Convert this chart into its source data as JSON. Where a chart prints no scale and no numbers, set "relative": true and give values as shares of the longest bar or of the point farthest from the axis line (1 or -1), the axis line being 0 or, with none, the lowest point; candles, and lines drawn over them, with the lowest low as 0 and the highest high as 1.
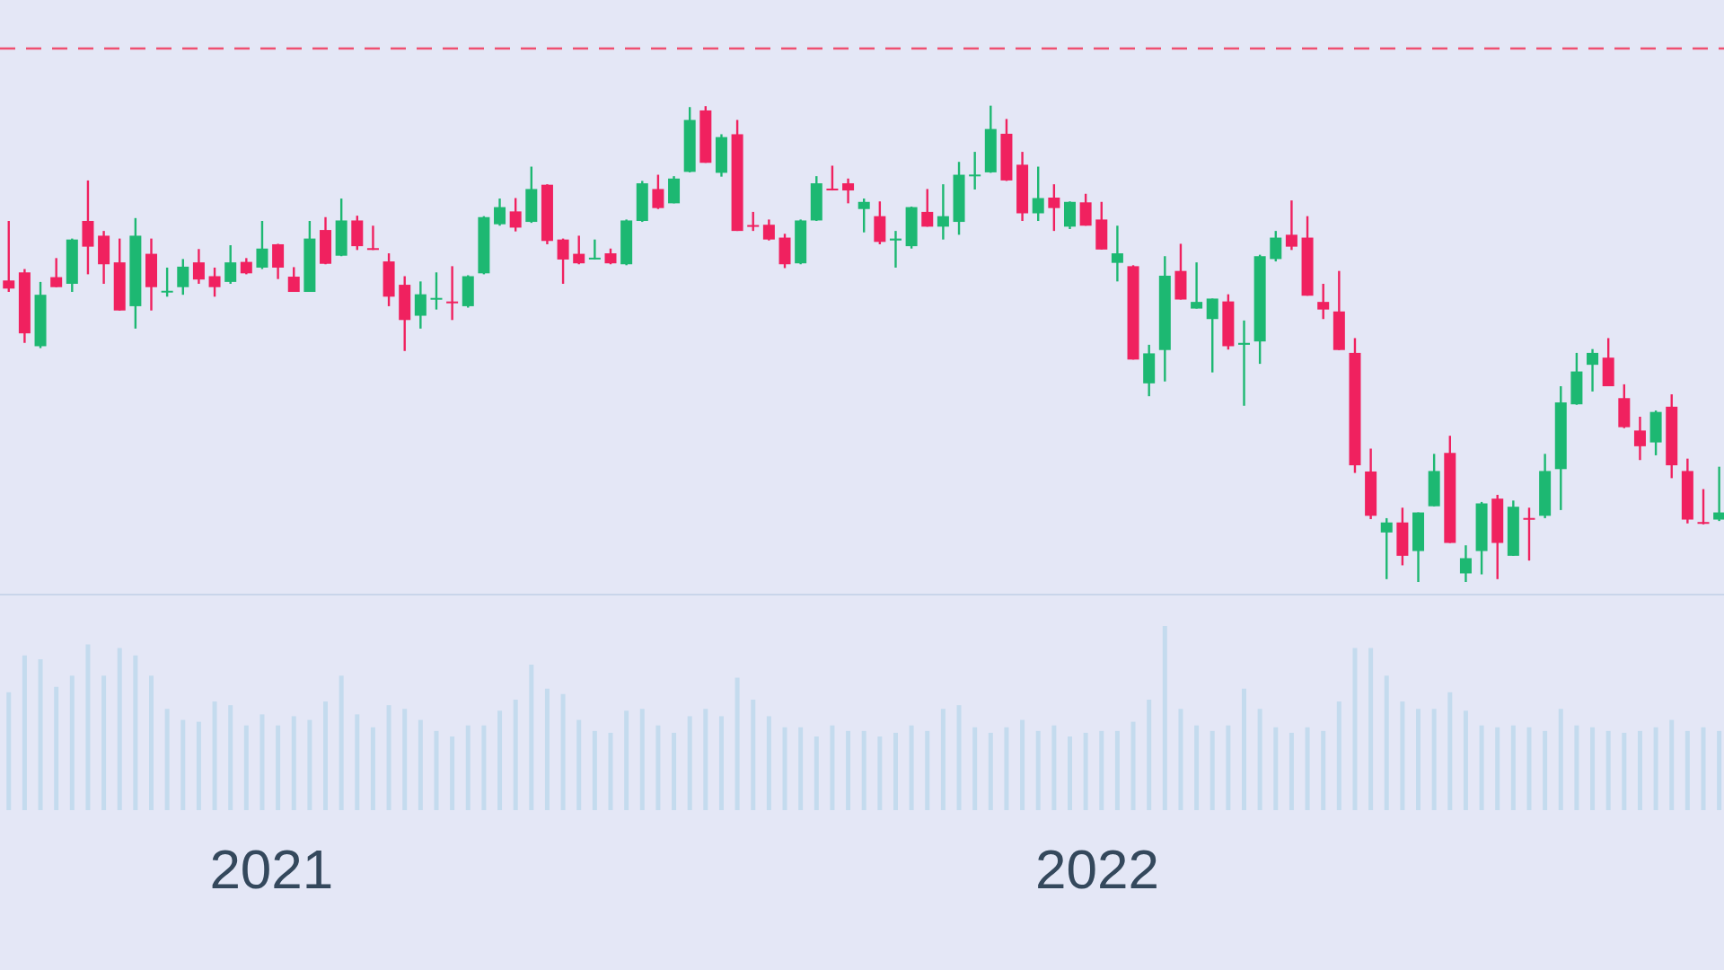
{
  "chart_data": [
    {
      "type": "candlestick",
      "relative": true,
      "x": [
        "2020-09-07",
        "2020-09-14",
        "2020-09-21",
        "2020-09-28",
        "2020-10-05",
        "2020-10-12",
        "2020-10-19",
        "2020-10-26",
        "2020-11-02",
        "2020-11-09",
        "2020-11-16",
        "2020-11-23",
        "2020-11-30",
        "2020-12-07",
        "2020-12-14",
        "2020-12-21",
        "2020-12-28",
        "2021-01-04",
        "2021-01-11",
        "2021-01-18",
        "2021-01-25",
        "2021-02-01",
        "2021-02-08",
        "2021-02-15",
        "2021-02-22",
        "2021-03-01",
        "2021-03-08",
        "2021-03-15",
        "2021-03-22",
        "2021-03-29",
        "2021-04-05",
        "2021-04-12",
        "2021-04-19",
        "2021-04-26",
        "2021-05-03",
        "2021-05-10",
        "2021-05-17",
        "2021-05-24",
        "2021-05-31",
        "2021-06-07",
        "2021-06-14",
        "2021-06-21",
        "2021-06-28",
        "2021-07-05",
        "2021-07-12",
        "2021-07-19",
        "2021-07-26",
        "2021-08-02",
        "2021-08-09",
        "2021-08-16",
        "2021-08-23",
        "2021-08-30",
        "2021-09-06",
        "2021-09-13",
        "2021-09-20",
        "2021-09-27",
        "2021-10-04",
        "2021-10-11",
        "2021-10-18",
        "2021-10-25",
        "2021-11-01",
        "2021-11-08",
        "2021-11-15",
        "2021-11-22",
        "2021-11-29",
        "2021-12-06",
        "2021-12-13",
        "2021-12-20",
        "2021-12-27",
        "2022-01-03",
        "2022-01-10",
        "2022-01-17",
        "2022-01-24",
        "2022-01-31",
        "2022-02-07",
        "2022-02-14",
        "2022-02-21",
        "2022-02-28",
        "2022-03-07",
        "2022-03-14",
        "2022-03-21",
        "2022-03-28",
        "2022-04-04",
        "2022-04-11",
        "2022-04-18",
        "2022-04-25",
        "2022-05-02",
        "2022-05-09",
        "2022-05-16",
        "2022-05-23",
        "2022-05-30",
        "2022-06-06",
        "2022-06-13",
        "2022-06-20",
        "2022-06-27",
        "2022-07-04",
        "2022-07-11",
        "2022-07-18",
        "2022-07-25",
        "2022-08-01",
        "2022-08-08",
        "2022-08-15",
        "2022-08-22",
        "2022-08-29",
        "2022-09-05",
        "2022-09-12",
        "2022-09-19",
        "2022-09-26",
        "2022-10-03"
      ],
      "ohlc": [
        [
          0.633,
          0.758,
          0.609,
          0.616
        ],
        [
          0.65,
          0.657,
          0.502,
          0.522
        ],
        [
          0.495,
          0.63,
          0.491,
          0.603
        ],
        [
          0.64,
          0.68,
          0.619,
          0.619
        ],
        [
          0.626,
          0.721,
          0.609,
          0.719
        ],
        [
          0.758,
          0.843,
          0.646,
          0.704
        ],
        [
          0.727,
          0.737,
          0.626,
          0.667
        ],
        [
          0.671,
          0.721,
          0.57,
          0.57
        ],
        [
          0.579,
          0.764,
          0.532,
          0.727
        ],
        [
          0.689,
          0.721,
          0.57,
          0.619
        ],
        [
          0.608,
          0.66,
          0.599,
          0.611
        ],
        [
          0.619,
          0.678,
          0.603,
          0.662
        ],
        [
          0.671,
          0.699,
          0.626,
          0.635
        ],
        [
          0.642,
          0.66,
          0.599,
          0.619
        ],
        [
          0.63,
          0.707,
          0.626,
          0.671
        ],
        [
          0.672,
          0.68,
          0.646,
          0.648
        ],
        [
          0.66,
          0.758,
          0.657,
          0.7
        ],
        [
          0.709,
          0.71,
          0.636,
          0.66
        ],
        [
          0.641,
          0.661,
          0.609,
          0.609
        ],
        [
          0.609,
          0.758,
          0.609,
          0.721
        ],
        [
          0.739,
          0.766,
          0.667,
          0.668
        ],
        [
          0.685,
          0.805,
          0.684,
          0.759
        ],
        [
          0.759,
          0.769,
          0.697,
          0.705
        ],
        [
          0.7,
          0.748,
          0.697,
          0.698
        ],
        [
          0.673,
          0.69,
          0.579,
          0.599
        ],
        [
          0.624,
          0.642,
          0.485,
          0.55
        ],
        [
          0.559,
          0.631,
          0.532,
          0.604
        ],
        [
          0.593,
          0.65,
          0.572,
          0.596
        ],
        [
          0.588,
          0.663,
          0.55,
          0.586
        ],
        [
          0.579,
          0.644,
          0.576,
          0.642
        ],
        [
          0.648,
          0.768,
          0.646,
          0.766
        ],
        [
          0.751,
          0.805,
          0.748,
          0.787
        ],
        [
          0.778,
          0.806,
          0.736,
          0.744
        ],
        [
          0.756,
          0.872,
          0.754,
          0.825
        ],
        [
          0.834,
          0.835,
          0.709,
          0.716
        ],
        [
          0.719,
          0.721,
          0.626,
          0.677
        ],
        [
          0.689,
          0.727,
          0.667,
          0.669
        ],
        [
          0.678,
          0.719,
          0.677,
          0.68
        ],
        [
          0.69,
          0.7,
          0.667,
          0.669
        ],
        [
          0.667,
          0.761,
          0.665,
          0.759
        ],
        [
          0.758,
          0.842,
          0.756,
          0.837
        ],
        [
          0.825,
          0.855,
          0.783,
          0.785
        ],
        [
          0.795,
          0.852,
          0.795,
          0.847
        ],
        [
          0.861,
          0.997,
          0.86,
          0.97
        ],
        [
          0.99,
          0.999,
          0.88,
          0.88
        ],
        [
          0.859,
          0.94,
          0.851,
          0.934
        ],
        [
          0.94,
          0.97,
          0.737,
          0.737
        ],
        [
          0.749,
          0.777,
          0.737,
          0.746
        ],
        [
          0.75,
          0.761,
          0.717,
          0.719
        ],
        [
          0.723,
          0.731,
          0.659,
          0.667
        ],
        [
          0.669,
          0.761,
          0.667,
          0.759
        ],
        [
          0.759,
          0.852,
          0.758,
          0.837
        ],
        [
          0.825,
          0.874,
          0.822,
          0.823
        ],
        [
          0.837,
          0.847,
          0.795,
          0.822
        ],
        [
          0.783,
          0.805,
          0.734,
          0.798
        ],
        [
          0.768,
          0.799,
          0.709,
          0.714
        ],
        [
          0.717,
          0.737,
          0.66,
          0.721
        ],
        [
          0.705,
          0.788,
          0.7,
          0.787
        ],
        [
          0.777,
          0.825,
          0.746,
          0.746
        ],
        [
          0.746,
          0.835,
          0.719,
          0.768
        ],
        [
          0.756,
          0.882,
          0.729,
          0.855
        ],
        [
          0.852,
          0.903,
          0.824,
          0.855
        ],
        [
          0.86,
          1.0,
          0.859,
          0.951
        ],
        [
          0.941,
          0.972,
          0.842,
          0.843
        ],
        [
          0.876,
          0.903,
          0.758,
          0.774
        ],
        [
          0.774,
          0.872,
          0.758,
          0.806
        ],
        [
          0.807,
          0.835,
          0.737,
          0.785
        ],
        [
          0.746,
          0.799,
          0.741,
          0.798
        ],
        [
          0.797,
          0.815,
          0.748,
          0.748
        ],
        [
          0.761,
          0.798,
          0.698,
          0.698
        ],
        [
          0.67,
          0.748,
          0.631,
          0.69
        ],
        [
          0.663,
          0.665,
          0.467,
          0.467
        ],
        [
          0.417,
          0.498,
          0.39,
          0.48
        ],
        [
          0.487,
          0.684,
          0.421,
          0.643
        ],
        [
          0.653,
          0.71,
          0.593,
          0.593
        ],
        [
          0.574,
          0.671,
          0.574,
          0.588
        ],
        [
          0.552,
          0.595,
          0.44,
          0.595
        ],
        [
          0.589,
          0.604,
          0.488,
          0.495
        ],
        [
          0.498,
          0.549,
          0.37,
          0.502
        ],
        [
          0.505,
          0.687,
          0.458,
          0.684
        ],
        [
          0.678,
          0.737,
          0.673,
          0.723
        ],
        [
          0.729,
          0.801,
          0.697,
          0.704
        ],
        [
          0.723,
          0.768,
          0.601,
          0.601
        ],
        [
          0.588,
          0.626,
          0.552,
          0.572
        ],
        [
          0.568,
          0.653,
          0.487,
          0.487
        ],
        [
          0.481,
          0.512,
          0.229,
          0.245
        ],
        [
          0.232,
          0.28,
          0.132,
          0.139
        ],
        [
          0.104,
          0.134,
          0.006,
          0.125
        ],
        [
          0.125,
          0.156,
          0.035,
          0.055
        ],
        [
          0.065,
          0.146,
          0.0,
          0.146
        ],
        [
          0.159,
          0.269,
          0.159,
          0.233
        ],
        [
          0.271,
          0.307,
          0.082,
          0.082
        ],
        [
          0.018,
          0.077,
          0.0,
          0.05
        ],
        [
          0.065,
          0.168,
          0.016,
          0.165
        ],
        [
          0.175,
          0.183,
          0.006,
          0.082
        ],
        [
          0.055,
          0.171,
          0.055,
          0.158
        ],
        [
          0.134,
          0.156,
          0.045,
          0.131
        ],
        [
          0.139,
          0.269,
          0.134,
          0.233
        ],
        [
          0.237,
          0.411,
          0.151,
          0.377
        ],
        [
          0.373,
          0.481,
          0.372,
          0.442
        ],
        [
          0.456,
          0.489,
          0.4,
          0.481
        ],
        [
          0.471,
          0.512,
          0.411,
          0.411
        ],
        [
          0.386,
          0.415,
          0.323,
          0.325
        ],
        [
          0.318,
          0.347,
          0.256,
          0.285
        ],
        [
          0.293,
          0.36,
          0.266,
          0.357
        ],
        [
          0.368,
          0.394,
          0.218,
          0.245
        ],
        [
          0.233,
          0.259,
          0.123,
          0.131
        ],
        [
          0.125,
          0.195,
          0.121,
          0.123
        ],
        [
          0.131,
          0.242,
          0.128,
          0.146
        ]
      ],
      "colors": [
        "#f0215f",
        "#f0215f",
        "#1db872",
        "#f0215f",
        "#1db872",
        "#f0215f",
        "#f0215f",
        "#f0215f",
        "#1db872",
        "#f0215f",
        "#1db872",
        "#1db872",
        "#f0215f",
        "#f0215f",
        "#1db872",
        "#f0215f",
        "#1db872",
        "#f0215f",
        "#f0215f",
        "#1db872",
        "#f0215f",
        "#1db872",
        "#f0215f",
        "#f0215f",
        "#f0215f",
        "#f0215f",
        "#1db872",
        "#1db872",
        "#f0215f",
        "#1db872",
        "#1db872",
        "#1db872",
        "#f0215f",
        "#1db872",
        "#f0215f",
        "#f0215f",
        "#f0215f",
        "#1db872",
        "#f0215f",
        "#1db872",
        "#1db872",
        "#f0215f",
        "#1db872",
        "#1db872",
        "#f0215f",
        "#1db872",
        "#f0215f",
        "#f0215f",
        "#f0215f",
        "#f0215f",
        "#1db872",
        "#1db872",
        "#f0215f",
        "#f0215f",
        "#1db872",
        "#f0215f",
        "#1db872",
        "#1db872",
        "#f0215f",
        "#1db872",
        "#1db872",
        "#1db872",
        "#1db872",
        "#f0215f",
        "#f0215f",
        "#1db872",
        "#f0215f",
        "#1db872",
        "#f0215f",
        "#f0215f",
        "#1db872",
        "#f0215f",
        "#1db872",
        "#1db872",
        "#f0215f",
        "#1db872",
        "#1db872",
        "#f0215f",
        "#1db872",
        "#1db872",
        "#1db872",
        "#f0215f",
        "#f0215f",
        "#f0215f",
        "#f0215f",
        "#f0215f",
        "#f0215f",
        "#1db872",
        "#f0215f",
        "#1db872",
        "#1db872",
        "#f0215f",
        "#1db872",
        "#1db872",
        "#f0215f",
        "#1db872",
        "#f0215f",
        "#1db872",
        "#1db872",
        "#1db872",
        "#1db872",
        "#f0215f",
        "#f0215f",
        "#f0215f",
        "#1db872",
        "#f0215f",
        "#f0215f",
        "#f0215f",
        "#1db872"
      ],
      "xlim": [
        "2020-09-03",
        "2022-10-05"
      ],
      "tick_labels": false,
      "ref_lines": [
        {
          "axis": "y",
          "value": 1.12,
          "color": "#ef4f70",
          "line_style": "dashed"
        }
      ]
    },
    {
      "type": "bar",
      "relative": true,
      "x": [
        "2020-09-07",
        "2020-09-14",
        "2020-09-21",
        "2020-09-28",
        "2020-10-05",
        "2020-10-12",
        "2020-10-19",
        "2020-10-26",
        "2020-11-02",
        "2020-11-09",
        "2020-11-16",
        "2020-11-23",
        "2020-11-30",
        "2020-12-07",
        "2020-12-14",
        "2020-12-21",
        "2020-12-28",
        "2021-01-04",
        "2021-01-11",
        "2021-01-18",
        "2021-01-25",
        "2021-02-01",
        "2021-02-08",
        "2021-02-15",
        "2021-02-22",
        "2021-03-01",
        "2021-03-08",
        "2021-03-15",
        "2021-03-22",
        "2021-03-29",
        "2021-04-05",
        "2021-04-12",
        "2021-04-19",
        "2021-04-26",
        "2021-05-03",
        "2021-05-10",
        "2021-05-17",
        "2021-05-24",
        "2021-05-31",
        "2021-06-07",
        "2021-06-14",
        "2021-06-21",
        "2021-06-28",
        "2021-07-05",
        "2021-07-12",
        "2021-07-19",
        "2021-07-26",
        "2021-08-02",
        "2021-08-09",
        "2021-08-16",
        "2021-08-23",
        "2021-08-30",
        "2021-09-06",
        "2021-09-13",
        "2021-09-20",
        "2021-09-27",
        "2021-10-04",
        "2021-10-11",
        "2021-10-18",
        "2021-10-25",
        "2021-11-01",
        "2021-11-08",
        "2021-11-15",
        "2021-11-22",
        "2021-11-29",
        "2021-12-06",
        "2021-12-13",
        "2021-12-20",
        "2021-12-27",
        "2022-01-03",
        "2022-01-10",
        "2022-01-17",
        "2022-01-24",
        "2022-01-31",
        "2022-02-07",
        "2022-02-14",
        "2022-02-21",
        "2022-02-28",
        "2022-03-07",
        "2022-03-14",
        "2022-03-21",
        "2022-03-28",
        "2022-04-04",
        "2022-04-11",
        "2022-04-18",
        "2022-04-25",
        "2022-05-02",
        "2022-05-09",
        "2022-05-16",
        "2022-05-23",
        "2022-05-30",
        "2022-06-06",
        "2022-06-13",
        "2022-06-20",
        "2022-06-27",
        "2022-07-04",
        "2022-07-11",
        "2022-07-18",
        "2022-07-25",
        "2022-08-01",
        "2022-08-08",
        "2022-08-15",
        "2022-08-22",
        "2022-08-29",
        "2022-09-05",
        "2022-09-12",
        "2022-09-19",
        "2022-09-26",
        "2022-10-03"
      ],
      "values": [
        0.64,
        0.84,
        0.82,
        0.67,
        0.73,
        0.9,
        0.73,
        0.88,
        0.84,
        0.73,
        0.55,
        0.49,
        0.48,
        0.59,
        0.57,
        0.46,
        0.52,
        0.46,
        0.51,
        0.49,
        0.59,
        0.73,
        0.52,
        0.45,
        0.57,
        0.55,
        0.49,
        0.43,
        0.4,
        0.46,
        0.46,
        0.54,
        0.6,
        0.79,
        0.66,
        0.63,
        0.49,
        0.43,
        0.42,
        0.54,
        0.55,
        0.46,
        0.42,
        0.51,
        0.55,
        0.51,
        0.72,
        0.6,
        0.51,
        0.45,
        0.45,
        0.4,
        0.46,
        0.43,
        0.43,
        0.4,
        0.42,
        0.46,
        0.43,
        0.55,
        0.57,
        0.45,
        0.42,
        0.45,
        0.49,
        0.43,
        0.46,
        0.4,
        0.42,
        0.43,
        0.43,
        0.48,
        0.6,
        1,
        0.55,
        0.46,
        0.43,
        0.46,
        0.66,
        0.55,
        0.45,
        0.42,
        0.45,
        0.43,
        0.59,
        0.88,
        0.88,
        0.73,
        0.59,
        0.55,
        0.55,
        0.64,
        0.54,
        0.46,
        0.45,
        0.46,
        0.45,
        0.43,
        0.55,
        0.46,
        0.45,
        0.43,
        0.42,
        0.43,
        0.45,
        0.49,
        0.43,
        0.45,
        0.43
      ],
      "color": "#c4dbee",
      "xlim": [
        "2020-09-03",
        "2022-10-05"
      ],
      "xticks": [
        "2021",
        "2022"
      ],
      "tick_labels": "x"
    }
  ]
}
